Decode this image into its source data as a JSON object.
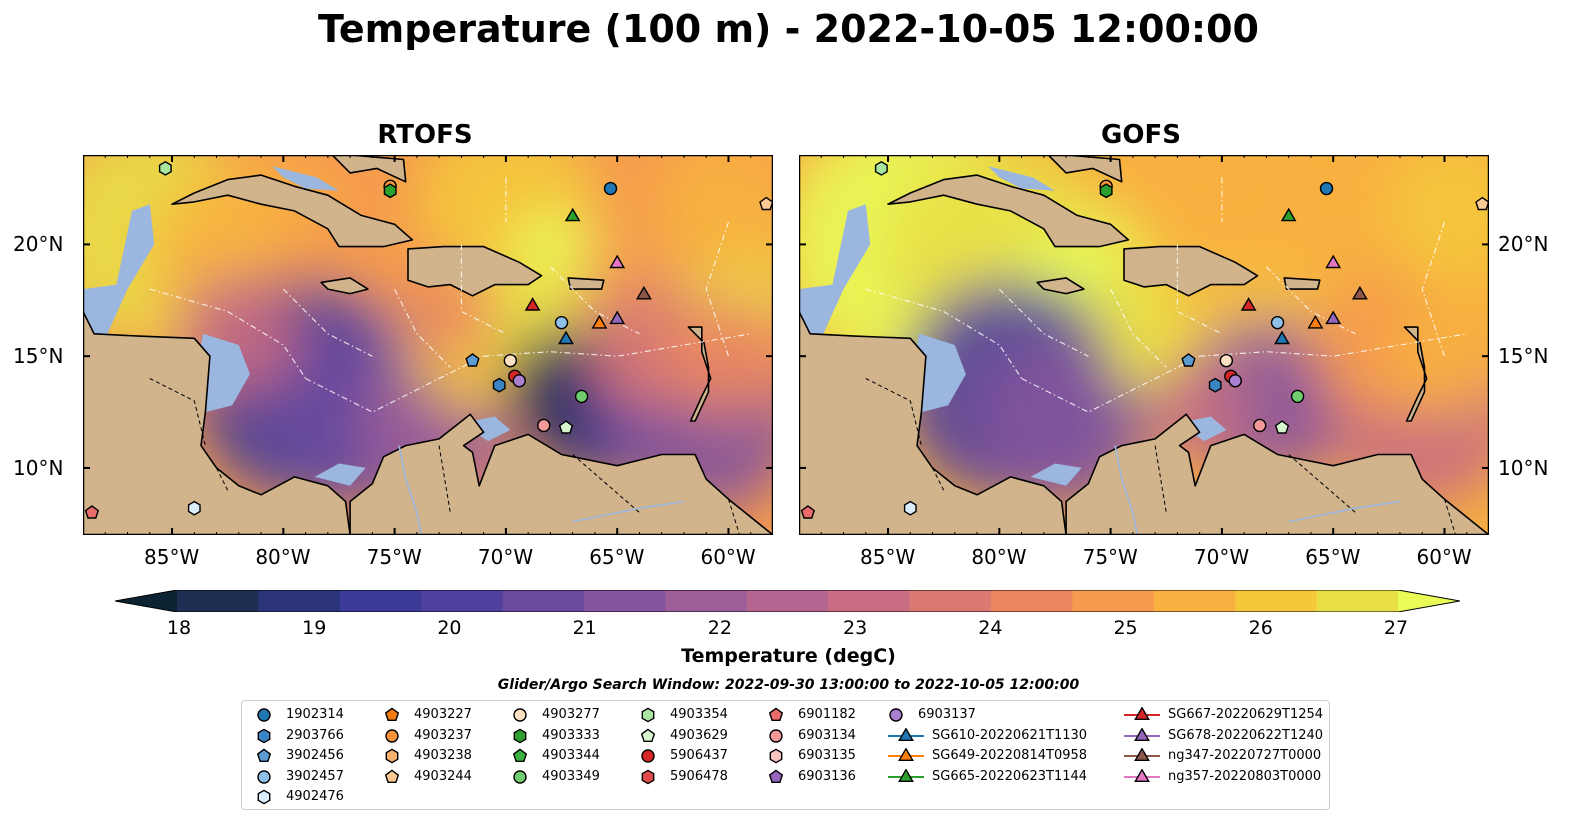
{
  "title": "Temperature (100 m) - 2022-10-05 12:00:00",
  "panels": [
    {
      "title": "RTOFS",
      "variant": "rtofs"
    },
    {
      "title": "GOFS",
      "variant": "gofs"
    }
  ],
  "axes": {
    "lon_ticks": [
      {
        "value": -85,
        "label": "85°W"
      },
      {
        "value": -80,
        "label": "80°W"
      },
      {
        "value": -75,
        "label": "75°W"
      },
      {
        "value": -70,
        "label": "70°W"
      },
      {
        "value": -65,
        "label": "65°W"
      },
      {
        "value": -60,
        "label": "60°W"
      }
    ],
    "lat_ticks": [
      {
        "value": 10,
        "label": "10°N"
      },
      {
        "value": 15,
        "label": "15°N"
      },
      {
        "value": 20,
        "label": "20°N"
      }
    ],
    "lon_range": [
      -89,
      -58
    ],
    "lat_range": [
      7,
      24
    ]
  },
  "colorbar": {
    "label": "Temperature (degC)",
    "ticks": [
      "18",
      "19",
      "20",
      "21",
      "22",
      "23",
      "24",
      "25",
      "26",
      "27"
    ],
    "range": [
      18,
      27
    ],
    "extend": "both",
    "colors": [
      "#0b2333",
      "#1d2f52",
      "#2c3479",
      "#3b3a99",
      "#51409e",
      "#6a4a9e",
      "#83539d",
      "#9c5d98",
      "#b46590",
      "#c96d82",
      "#dc7872",
      "#eb8660",
      "#f59a4e",
      "#f8b040",
      "#f5c83c",
      "#e8df46",
      "#e8fb57"
    ]
  },
  "colors": {
    "land": "#d2b48c",
    "shelf": "#9bb6df",
    "coast": "#000000"
  },
  "search_window": "Glider/Argo Search Window: 2022-09-30 13:00:00 to 2022-10-05 12:00:00",
  "legend": {
    "columns": [
      [
        {
          "label": "1902314",
          "marker": "circle",
          "color": "#1f77b4"
        },
        {
          "label": "2903766",
          "marker": "hexagon",
          "color": "#3a84c2"
        },
        {
          "label": "3902456",
          "marker": "pentagon",
          "color": "#5d9bd3"
        },
        {
          "label": "3902457",
          "marker": "circle",
          "color": "#8fc0e8"
        },
        {
          "label": "4902476",
          "marker": "hexagon",
          "color": "#dceefc"
        }
      ],
      [
        {
          "label": "4903227",
          "marker": "pentagon",
          "color": "#f07c12"
        },
        {
          "label": "4903237",
          "marker": "circle",
          "color": "#f7923a"
        },
        {
          "label": "4903238",
          "marker": "hexagon",
          "color": "#f9b26c"
        },
        {
          "label": "4903244",
          "marker": "pentagon",
          "color": "#fcca94"
        }
      ],
      [
        {
          "label": "4903277",
          "marker": "circle",
          "color": "#fde0c2"
        },
        {
          "label": "4903333",
          "marker": "hexagon",
          "color": "#2ca02c"
        },
        {
          "label": "4903344",
          "marker": "pentagon",
          "color": "#3bb040"
        },
        {
          "label": "4903349",
          "marker": "circle",
          "color": "#6fcc6f"
        }
      ],
      [
        {
          "label": "4903354",
          "marker": "hexagon",
          "color": "#a8e6a0"
        },
        {
          "label": "4903629",
          "marker": "pentagon",
          "color": "#d7f5cf"
        },
        {
          "label": "5906437",
          "marker": "circle",
          "color": "#d62728"
        },
        {
          "label": "5906478",
          "marker": "hexagon",
          "color": "#e0484a"
        }
      ],
      [
        {
          "label": "6901182",
          "marker": "pentagon",
          "color": "#ea6b6c"
        },
        {
          "label": "6903134",
          "marker": "circle",
          "color": "#f29a98"
        },
        {
          "label": "6903135",
          "marker": "hexagon",
          "color": "#f8c4c2"
        },
        {
          "label": "6903136",
          "marker": "pentagon",
          "color": "#9467bd"
        }
      ],
      [
        {
          "label": "6903137",
          "marker": "circle",
          "color": "#a97fd0"
        },
        {
          "label": "SG610-20220621T1130",
          "marker": "triangle-line",
          "color": "#1f77b4"
        },
        {
          "label": "SG649-20220814T0958",
          "marker": "triangle-line",
          "color": "#ff7f0e"
        },
        {
          "label": "SG665-20220623T1144",
          "marker": "triangle-line",
          "color": "#2ca02c"
        }
      ],
      [
        {
          "label": "SG667-20220629T1254",
          "marker": "triangle-line",
          "color": "#d62728"
        },
        {
          "label": "SG678-20220622T1240",
          "marker": "triangle-line",
          "color": "#9467bd"
        },
        {
          "label": "ng347-20220727T0000",
          "marker": "triangle-line",
          "color": "#8c564b"
        },
        {
          "label": "ng357-20220803T0000",
          "marker": "triangle-line",
          "color": "#e377c2"
        }
      ]
    ]
  },
  "observations": [
    {
      "id": "1902314",
      "lon": -65.3,
      "lat": 22.5,
      "marker": "circle",
      "color": "#1f77b4"
    },
    {
      "id": "2903766",
      "lon": -70.3,
      "lat": 13.7,
      "marker": "hexagon",
      "color": "#3a84c2"
    },
    {
      "id": "3902456",
      "lon": -71.5,
      "lat": 14.8,
      "marker": "pentagon",
      "color": "#5d9bd3"
    },
    {
      "id": "3902457",
      "lon": -67.5,
      "lat": 16.5,
      "marker": "circle",
      "color": "#8fc0e8"
    },
    {
      "id": "4902476",
      "lon": -84.0,
      "lat": 8.2,
      "marker": "hexagon",
      "color": "#dceefc"
    },
    {
      "id": "4903237",
      "lon": -75.2,
      "lat": 22.6,
      "marker": "circle",
      "color": "#f7923a"
    },
    {
      "id": "4903244",
      "lon": -58.3,
      "lat": 21.8,
      "marker": "pentagon",
      "color": "#fcca94"
    },
    {
      "id": "4903277",
      "lon": -69.8,
      "lat": 14.8,
      "marker": "circle",
      "color": "#fde0c2"
    },
    {
      "id": "4903333",
      "lon": -75.2,
      "lat": 22.4,
      "marker": "hexagon",
      "color": "#2ca02c"
    },
    {
      "id": "4903349",
      "lon": -66.6,
      "lat": 13.2,
      "marker": "circle",
      "color": "#6fcc6f"
    },
    {
      "id": "4903354",
      "lon": -85.3,
      "lat": 23.4,
      "marker": "hexagon",
      "color": "#a8e6a0"
    },
    {
      "id": "4903629",
      "lon": -67.3,
      "lat": 11.8,
      "marker": "pentagon",
      "color": "#d7f5cf"
    },
    {
      "id": "5906437",
      "lon": -69.6,
      "lat": 14.1,
      "marker": "circle",
      "color": "#d62728"
    },
    {
      "id": "6901182",
      "lon": -88.6,
      "lat": 8.0,
      "marker": "pentagon",
      "color": "#ea6b6c"
    },
    {
      "id": "6903134",
      "lon": -68.3,
      "lat": 11.9,
      "marker": "circle",
      "color": "#f29a98"
    },
    {
      "id": "6903137",
      "lon": -69.4,
      "lat": 13.9,
      "marker": "circle",
      "color": "#a97fd0"
    },
    {
      "id": "SG610-20220621T1130",
      "lon": -67.3,
      "lat": 15.8,
      "marker": "triangle",
      "color": "#1f77b4"
    },
    {
      "id": "SG649-20220814T0958",
      "lon": -65.8,
      "lat": 16.5,
      "marker": "triangle",
      "color": "#ff7f0e"
    },
    {
      "id": "SG665-20220623T1144",
      "lon": -67.0,
      "lat": 21.3,
      "marker": "triangle",
      "color": "#2ca02c"
    },
    {
      "id": "SG667-20220629T1254",
      "lon": -68.8,
      "lat": 17.3,
      "marker": "triangle",
      "color": "#d62728"
    },
    {
      "id": "SG678-20220622T1240",
      "lon": -65.0,
      "lat": 16.7,
      "marker": "triangle",
      "color": "#9467bd"
    },
    {
      "id": "ng347-20220727T0000",
      "lon": -63.8,
      "lat": 17.8,
      "marker": "triangle",
      "color": "#8c564b"
    },
    {
      "id": "ng357-20220803T0000",
      "lon": -65.0,
      "lat": 19.2,
      "marker": "triangle",
      "color": "#e377c2"
    }
  ]
}
